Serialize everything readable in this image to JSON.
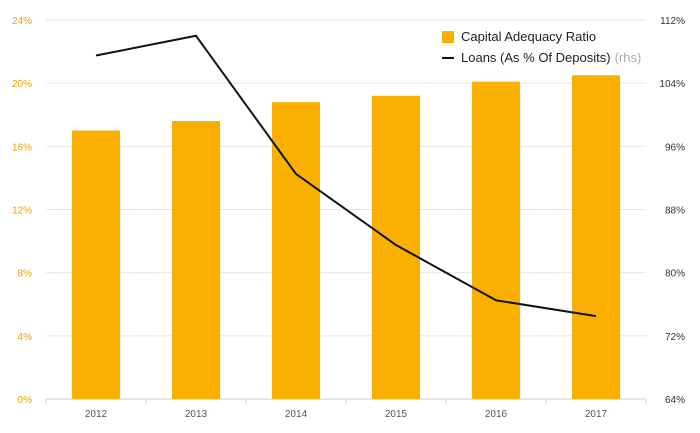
{
  "chart_data": {
    "type": "bar",
    "categories": [
      "2012",
      "2013",
      "2014",
      "2015",
      "2016",
      "2017"
    ],
    "series": [
      {
        "name": "Capital Adequacy Ratio",
        "type": "bar",
        "axis": "left",
        "color": "#F9B000",
        "values": [
          17.0,
          17.6,
          18.8,
          19.2,
          20.1,
          20.5
        ]
      },
      {
        "name": "Loans (As % Of Deposits)",
        "name_suffix": "(rhs)",
        "type": "line",
        "axis": "right",
        "color": "#111111",
        "values": [
          107.5,
          110.0,
          92.5,
          83.5,
          76.5,
          74.5
        ]
      }
    ],
    "left_axis": {
      "range": [
        0,
        24
      ],
      "ticks": [
        "0%",
        "4%",
        "8%",
        "12%",
        "16%",
        "20%",
        "24%"
      ],
      "color": "#E8A300"
    },
    "right_axis": {
      "range": [
        64,
        112
      ],
      "ticks": [
        "64%",
        "72%",
        "80%",
        "88%",
        "96%",
        "104%",
        "112%"
      ]
    },
    "grid": true,
    "legend_position": "top-right"
  }
}
